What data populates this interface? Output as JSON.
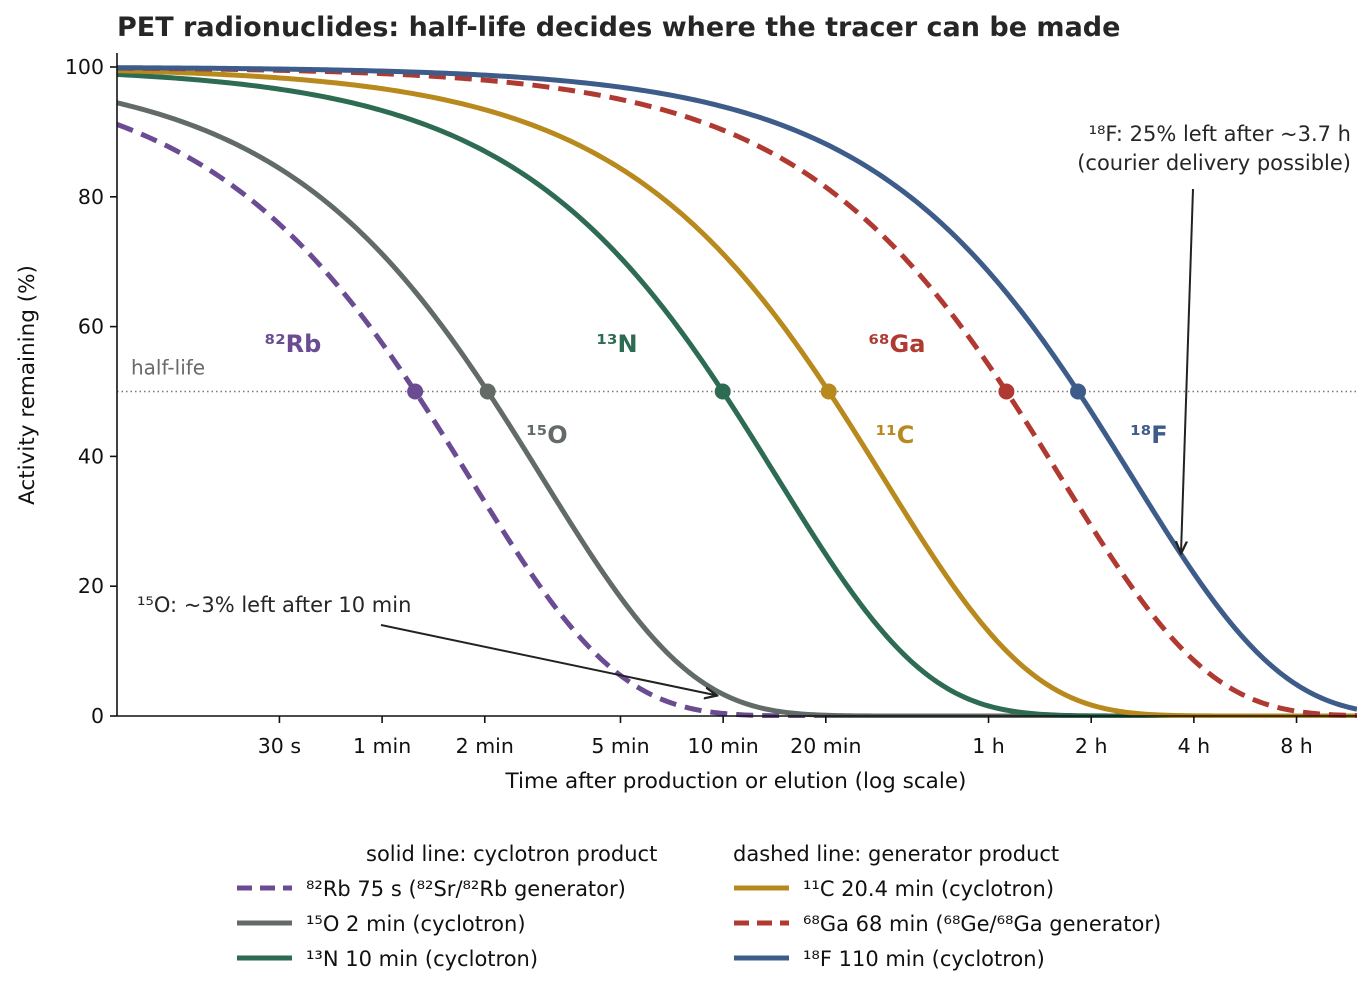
{
  "chart_data": {
    "type": "line",
    "title": "PET radionuclides: half-life decides where the tracer can be made",
    "xlabel": "Time after production or elution (log scale)",
    "ylabel": "Activity remaining (%)",
    "x_scale": "log",
    "x_unit": "minutes",
    "xlim": [
      0.167,
      722
    ],
    "ylim": [
      0,
      100
    ],
    "x_ticks": [
      {
        "value": 0.5,
        "label": "30 s"
      },
      {
        "value": 1,
        "label": "1 min"
      },
      {
        "value": 2,
        "label": "2 min"
      },
      {
        "value": 5,
        "label": "5 min"
      },
      {
        "value": 10,
        "label": "10 min"
      },
      {
        "value": 20,
        "label": "20 min"
      },
      {
        "value": 60,
        "label": "1 h"
      },
      {
        "value": 120,
        "label": "2 h"
      },
      {
        "value": 240,
        "label": "4 h"
      },
      {
        "value": 480,
        "label": "8 h"
      }
    ],
    "y_ticks": [
      {
        "value": 0,
        "label": "0"
      },
      {
        "value": 20,
        "label": "20"
      },
      {
        "value": 40,
        "label": "40"
      },
      {
        "value": 60,
        "label": "60"
      },
      {
        "value": 80,
        "label": "80"
      },
      {
        "value": 100,
        "label": "100"
      }
    ],
    "half_life_line": {
      "y": 50,
      "label": "half-life"
    },
    "series": [
      {
        "name": "⁸²Rb  75 s  (⁸²Sr/⁸²Rb generator)",
        "label": "⁸²Rb",
        "half_life_min": 1.25,
        "color": "#6b4c93",
        "dashed": true
      },
      {
        "name": "¹⁵O  2 min  (cyclotron)",
        "label": "¹⁵O",
        "half_life_min": 2.04,
        "color": "#636b67",
        "dashed": false
      },
      {
        "name": "¹³N  10 min  (cyclotron)",
        "label": "¹³N",
        "half_life_min": 9.97,
        "color": "#2d6b52",
        "dashed": false
      },
      {
        "name": "¹¹C  20.4 min  (cyclotron)",
        "label": "¹¹C",
        "half_life_min": 20.4,
        "color": "#b8891c",
        "dashed": false
      },
      {
        "name": "⁶⁸Ga  68 min  (⁶⁸Ge/⁶⁸Ga generator)",
        "label": "⁶⁸Ga",
        "half_life_min": 67.7,
        "color": "#b03a32",
        "dashed": true
      },
      {
        "name": "¹⁸F  110 min  (cyclotron)",
        "label": "¹⁸F",
        "half_life_min": 109.8,
        "color": "#3e5c8a",
        "dashed": false
      }
    ],
    "annotations": [
      {
        "text_lines": [
          "¹⁸F: 25% left after ~3.7 h",
          "(courier delivery possible)"
        ],
        "x": 220,
        "y": 25
      },
      {
        "text_lines": [
          "¹⁵O: ~3% left after 10 min"
        ],
        "x": 10,
        "y": 3
      }
    ],
    "legend": {
      "placement": "bottom",
      "col_headers": [
        "solid line: cyclotron product",
        "dashed line: generator product"
      ]
    },
    "grid": false
  }
}
